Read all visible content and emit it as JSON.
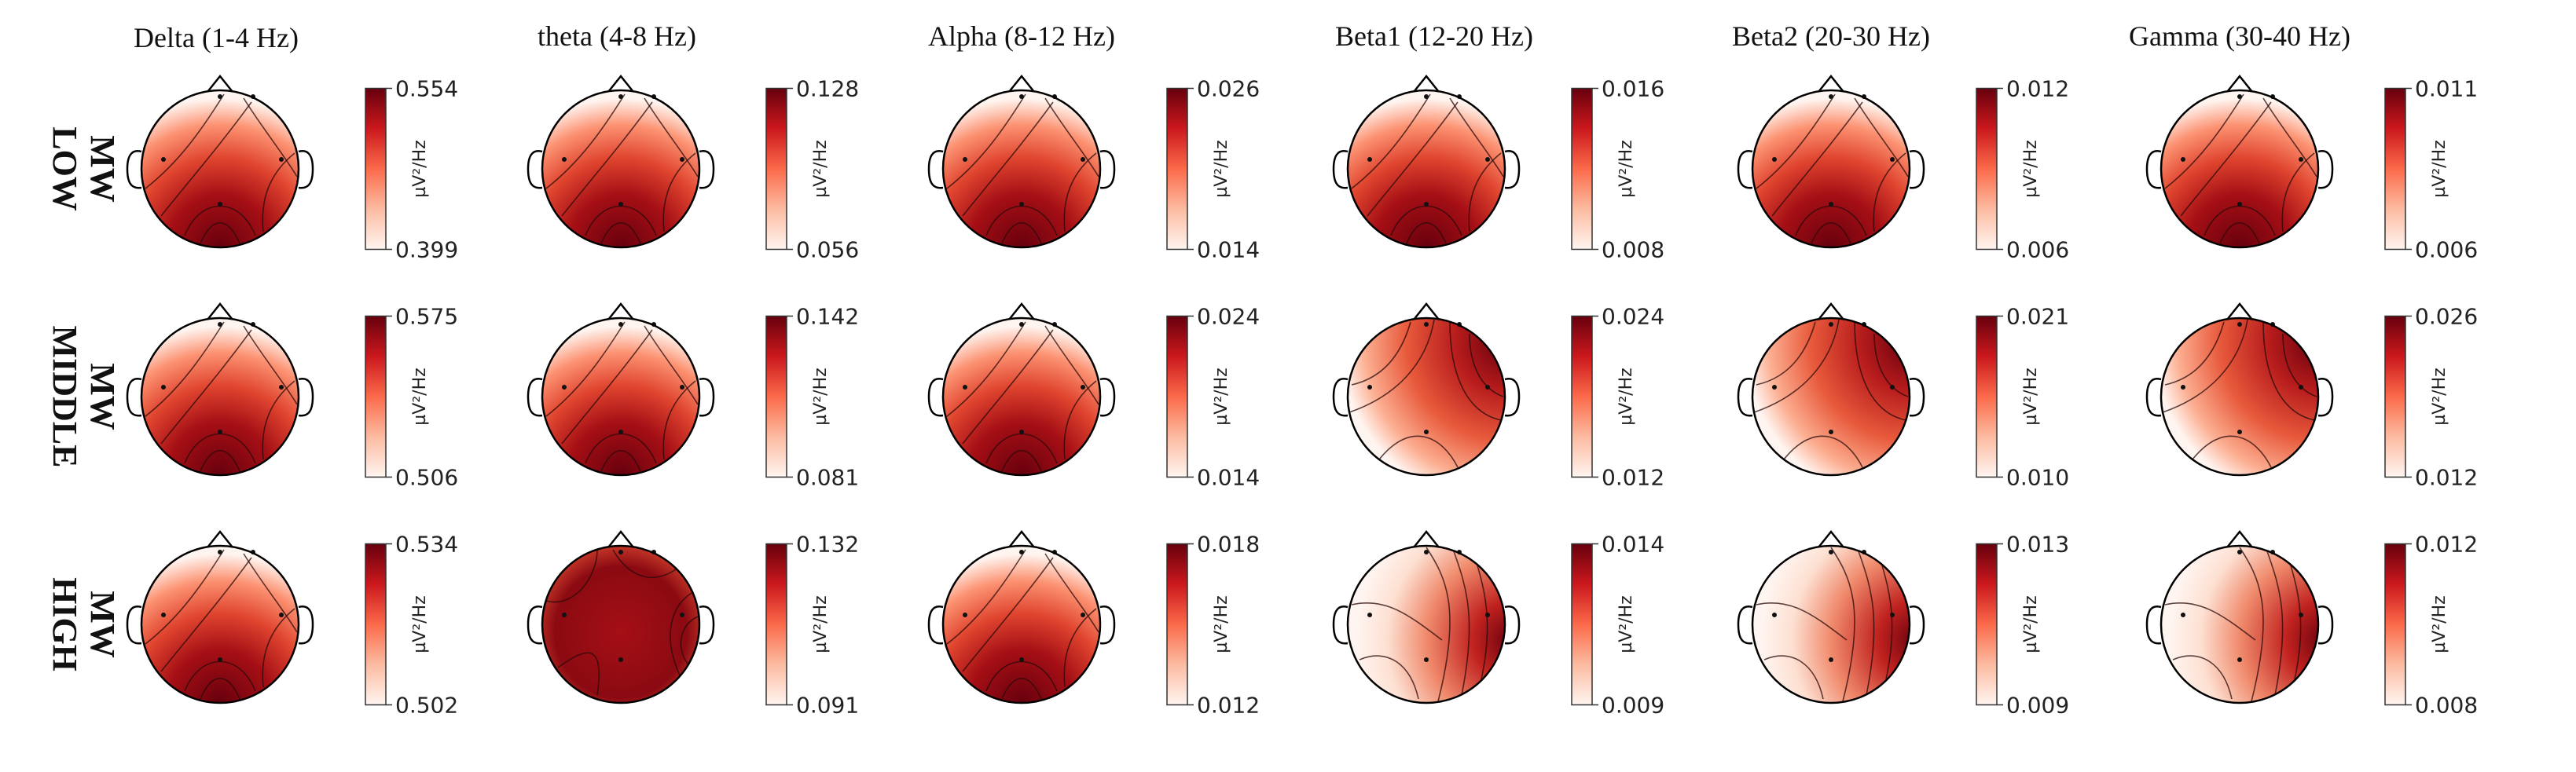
{
  "figure": {
    "unit_label": "µV²/Hz",
    "bands": [
      {
        "title": "Delta (1-4 Hz)"
      },
      {
        "title": "theta (4-8 Hz)"
      },
      {
        "title": "Alpha (8-12 Hz)"
      },
      {
        "title": "Beta1 (12-20 Hz)"
      },
      {
        "title": "Beta2 (20-30 Hz)"
      },
      {
        "title": "Gamma (30-40 Hz)"
      }
    ],
    "rows": [
      {
        "label_line1": "LOW",
        "label_line2": "MW",
        "scales": [
          {
            "max": "0.554",
            "min": "0.399"
          },
          {
            "max": "0.128",
            "min": "0.056"
          },
          {
            "max": "0.026",
            "min": "0.014"
          },
          {
            "max": "0.016",
            "min": "0.008"
          },
          {
            "max": "0.012",
            "min": "0.006"
          },
          {
            "max": "0.011",
            "min": "0.006"
          }
        ]
      },
      {
        "label_line1": "MIDDLE",
        "label_line2": "MW",
        "scales": [
          {
            "max": "0.575",
            "min": "0.506"
          },
          {
            "max": "0.142",
            "min": "0.081"
          },
          {
            "max": "0.024",
            "min": "0.014"
          },
          {
            "max": "0.024",
            "min": "0.012"
          },
          {
            "max": "0.021",
            "min": "0.010"
          },
          {
            "max": "0.026",
            "min": "0.012"
          }
        ]
      },
      {
        "label_line1": "HIGH",
        "label_line2": "MW",
        "scales": [
          {
            "max": "0.534",
            "min": "0.502"
          },
          {
            "max": "0.132",
            "min": "0.091"
          },
          {
            "max": "0.018",
            "min": "0.012"
          },
          {
            "max": "0.014",
            "min": "0.009"
          },
          {
            "max": "0.013",
            "min": "0.009"
          },
          {
            "max": "0.012",
            "min": "0.008"
          }
        ]
      }
    ],
    "maps": [
      [
        {
          "pattern": "posterior"
        },
        {
          "pattern": "posterior"
        },
        {
          "pattern": "posterior"
        },
        {
          "pattern": "posterior"
        },
        {
          "pattern": "posterior"
        },
        {
          "pattern": "posterior"
        }
      ],
      [
        {
          "pattern": "posterior"
        },
        {
          "pattern": "posterior"
        },
        {
          "pattern": "posterior"
        },
        {
          "pattern": "right"
        },
        {
          "pattern": "right"
        },
        {
          "pattern": "right"
        }
      ],
      [
        {
          "pattern": "posterior"
        },
        {
          "pattern": "diffuse"
        },
        {
          "pattern": "posterior"
        },
        {
          "pattern": "right-temporal"
        },
        {
          "pattern": "right-temporal"
        },
        {
          "pattern": "right-temporal"
        }
      ]
    ],
    "colors": {
      "high": "#67000d",
      "mid": "#d6452f",
      "low": "#fff5f0",
      "outline": "#000000"
    }
  }
}
